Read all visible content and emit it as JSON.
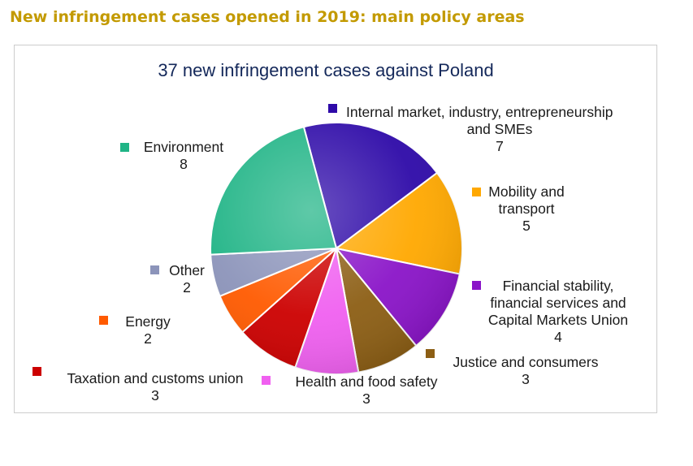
{
  "heading": "New infringement cases opened in 2019: main policy areas",
  "chart_data": {
    "type": "pie",
    "title": "37 new infringement cases against Poland",
    "slices": [
      {
        "label": "Internal market, industry, entrepreneurship and SMEs",
        "label_lines": [
          "Internal market, industry, entrepreneurship",
          "and SMEs"
        ],
        "value": 7,
        "color": "#2e0aa8"
      },
      {
        "label": "Mobility and transport",
        "label_lines": [
          "Mobility and",
          "transport"
        ],
        "value": 5,
        "color": "#ffa800"
      },
      {
        "label": "Financial stability, financial services and Capital Markets Union",
        "label_lines": [
          "Financial stability,",
          "financial services and",
          "Capital Markets Union"
        ],
        "value": 4,
        "color": "#8a14c8"
      },
      {
        "label": "Justice and consumers",
        "label_lines": [
          "Justice and consumers"
        ],
        "value": 3,
        "color": "#8c5e14"
      },
      {
        "label": "Health and food safety",
        "label_lines": [
          "Health and food safety"
        ],
        "value": 3,
        "color": "#f060f0"
      },
      {
        "label": "Taxation and customs union",
        "label_lines": [
          "Taxation and customs union"
        ],
        "value": 3,
        "color": "#cc0000"
      },
      {
        "label": "Energy",
        "label_lines": [
          "Energy"
        ],
        "value": 2,
        "color": "#ff5a00"
      },
      {
        "label": "Other",
        "label_lines": [
          "Other"
        ],
        "value": 2,
        "color": "#8c94ba"
      },
      {
        "label": "Environment",
        "label_lines": [
          "Environment"
        ],
        "value": 8,
        "color": "#20b486"
      }
    ]
  }
}
